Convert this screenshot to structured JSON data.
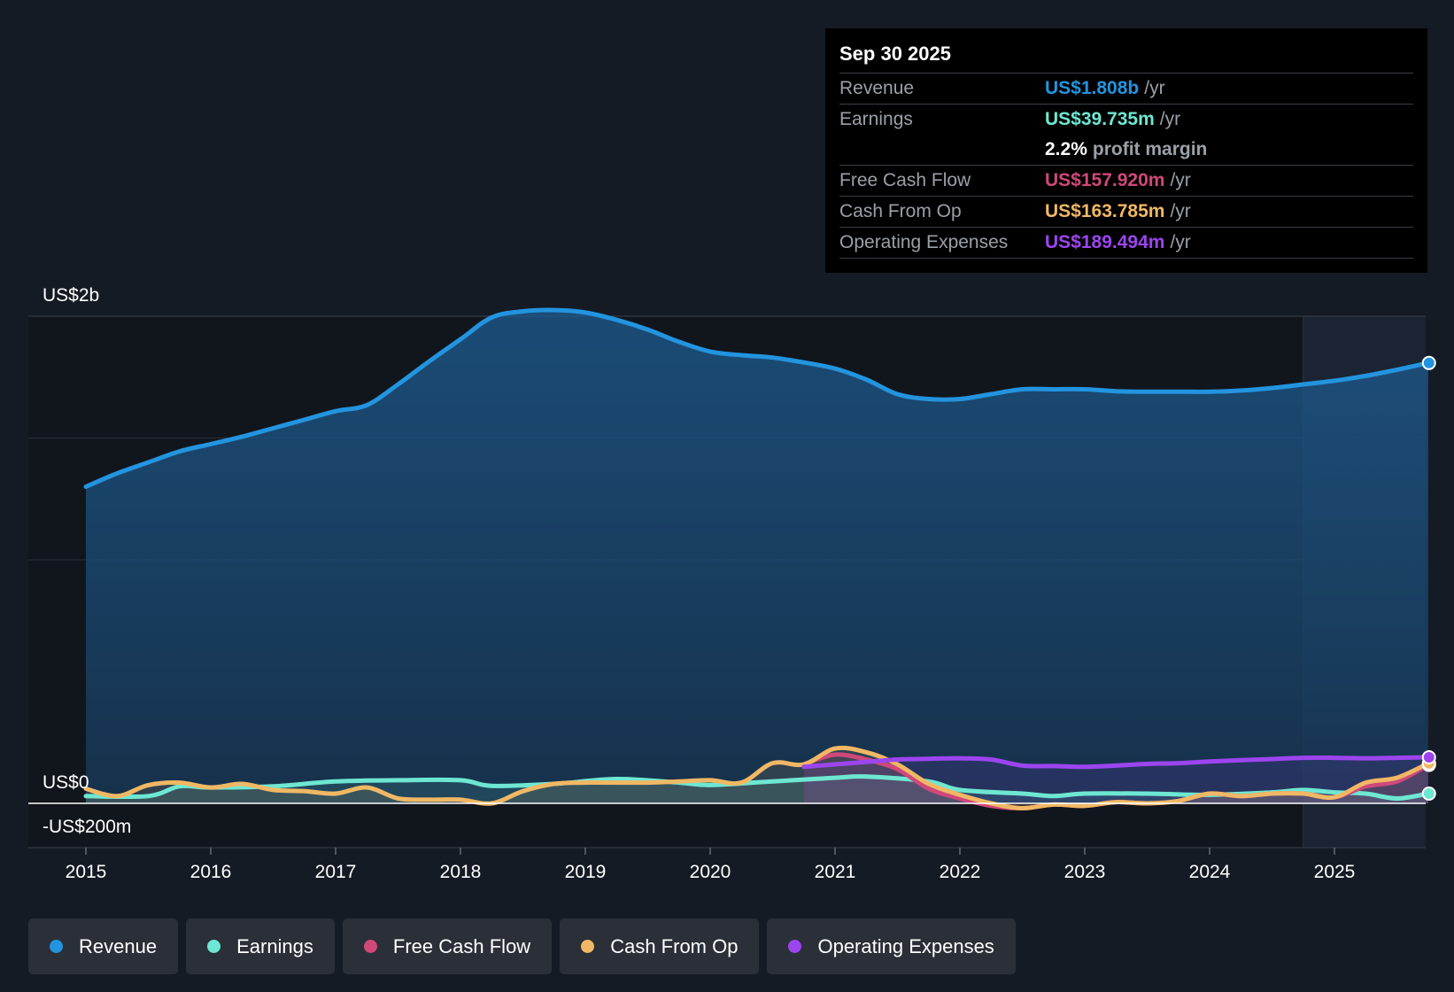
{
  "colors": {
    "background": "#151b24",
    "plot_background": "#11161d",
    "revenue": "#2394df",
    "earnings": "#6ee7d2",
    "free_cash_flow": "#d0487a",
    "cash_from_op": "#f0b865",
    "operating_expenses": "#9c45ef"
  },
  "tooltip": {
    "date": "Sep 30 2025",
    "revenue_label": "Revenue",
    "revenue_value": "US$1.808b",
    "revenue_suffix": "/yr",
    "earnings_label": "Earnings",
    "earnings_value": "US$39.735m",
    "earnings_suffix": "/yr",
    "margin_value": "2.2%",
    "margin_label": "profit margin",
    "fcf_label": "Free Cash Flow",
    "fcf_value": "US$157.920m",
    "fcf_suffix": "/yr",
    "cfo_label": "Cash From Op",
    "cfo_value": "US$163.785m",
    "cfo_suffix": "/yr",
    "opex_label": "Operating Expenses",
    "opex_value": "US$189.494m",
    "opex_suffix": "/yr"
  },
  "legend": [
    {
      "label": "Revenue",
      "color": "#2394df"
    },
    {
      "label": "Earnings",
      "color": "#6ee7d2"
    },
    {
      "label": "Free Cash Flow",
      "color": "#d0487a"
    },
    {
      "label": "Cash From Op",
      "color": "#f0b865"
    },
    {
      "label": "Operating Expenses",
      "color": "#9c45ef"
    }
  ],
  "chart_data": {
    "type": "line",
    "title": "",
    "ylim": [
      -200,
      2000
    ],
    "y_ticks": [
      {
        "value": 2000,
        "label": "US$2b"
      },
      {
        "value": 0,
        "label": "US$0"
      },
      {
        "value": -200,
        "label": "-US$200m"
      }
    ],
    "x_ticks": [
      2015,
      2016,
      2017,
      2018,
      2019,
      2020,
      2021,
      2022,
      2023,
      2024,
      2025
    ],
    "xlim": [
      2014.55,
      2025.75
    ],
    "forecast_start": 2024.75,
    "series": [
      {
        "name": "Revenue",
        "color": "#2394df",
        "fill": true,
        "x": [
          2015,
          2015.25,
          2015.5,
          2015.75,
          2016,
          2016.25,
          2016.5,
          2016.75,
          2017,
          2017.25,
          2017.5,
          2017.75,
          2018,
          2018.25,
          2018.5,
          2018.75,
          2019,
          2019.25,
          2019.5,
          2019.75,
          2020,
          2020.25,
          2020.5,
          2020.75,
          2021,
          2021.25,
          2021.5,
          2021.75,
          2022,
          2022.25,
          2022.5,
          2022.75,
          2023,
          2023.25,
          2023.5,
          2023.75,
          2024,
          2024.25,
          2024.5,
          2024.75,
          2025,
          2025.25,
          2025.5,
          2025.75
        ],
        "values": [
          1300,
          1355,
          1400,
          1445,
          1475,
          1505,
          1540,
          1575,
          1610,
          1635,
          1720,
          1815,
          1905,
          1995,
          2020,
          2025,
          2015,
          1985,
          1945,
          1895,
          1855,
          1840,
          1830,
          1810,
          1785,
          1740,
          1680,
          1660,
          1660,
          1680,
          1700,
          1700,
          1700,
          1692,
          1690,
          1690,
          1690,
          1695,
          1705,
          1720,
          1735,
          1755,
          1780,
          1808
        ]
      },
      {
        "name": "Earnings",
        "color": "#6ee7d2",
        "fill": false,
        "x": [
          2015,
          2015.5,
          2015.75,
          2016,
          2016.5,
          2017,
          2017.5,
          2018,
          2018.25,
          2018.75,
          2019.25,
          2019.75,
          2020,
          2020.5,
          2021,
          2021.25,
          2021.75,
          2022,
          2022.5,
          2022.75,
          2023,
          2023.5,
          2024,
          2024.5,
          2024.75,
          2025,
          2025.25,
          2025.5,
          2025.75
        ],
        "values": [
          30,
          30,
          70,
          65,
          70,
          90,
          95,
          95,
          72,
          80,
          100,
          85,
          75,
          90,
          105,
          110,
          90,
          55,
          40,
          30,
          40,
          40,
          35,
          45,
          55,
          45,
          40,
          20,
          40
        ]
      },
      {
        "name": "Free Cash Flow",
        "color": "#d0487a",
        "fill": false,
        "x": [
          2020.75,
          2021,
          2021.25,
          2021.5,
          2021.75,
          2022,
          2022.25,
          2022.5,
          2022.75,
          2023,
          2023.25,
          2023.5,
          2023.75,
          2024,
          2024.25,
          2024.5,
          2024.75,
          2025,
          2025.25,
          2025.5,
          2025.75
        ],
        "values": [
          160,
          200,
          180,
          140,
          60,
          20,
          -10,
          -20,
          -5,
          -10,
          5,
          0,
          10,
          40,
          30,
          40,
          40,
          25,
          70,
          90,
          158
        ]
      },
      {
        "name": "Cash From Op",
        "color": "#f0b865",
        "fill": false,
        "x": [
          2015,
          2015.25,
          2015.5,
          2015.75,
          2016,
          2016.25,
          2016.5,
          2016.75,
          2017,
          2017.25,
          2017.5,
          2017.75,
          2018,
          2018.25,
          2018.5,
          2018.75,
          2019,
          2019.5,
          2019.75,
          2020,
          2020.25,
          2020.5,
          2020.75,
          2021,
          2021.25,
          2021.5,
          2021.75,
          2022,
          2022.25,
          2022.5,
          2022.75,
          2023,
          2023.25,
          2023.5,
          2023.75,
          2024,
          2024.25,
          2024.5,
          2024.75,
          2025,
          2025.25,
          2025.5,
          2025.75
        ],
        "values": [
          60,
          30,
          75,
          85,
          65,
          80,
          55,
          50,
          40,
          65,
          20,
          15,
          15,
          0,
          50,
          80,
          85,
          85,
          90,
          95,
          85,
          165,
          160,
          225,
          210,
          160,
          80,
          35,
          0,
          -20,
          -5,
          -10,
          5,
          0,
          10,
          40,
          30,
          40,
          40,
          25,
          85,
          105,
          164
        ]
      },
      {
        "name": "Operating Expenses",
        "color": "#9c45ef",
        "fill": false,
        "x": [
          2020.75,
          2021,
          2021.25,
          2021.5,
          2021.75,
          2022,
          2022.25,
          2022.5,
          2022.75,
          2023,
          2023.25,
          2023.5,
          2023.75,
          2024,
          2024.25,
          2024.5,
          2024.75,
          2025,
          2025.25,
          2025.5,
          2025.75
        ],
        "values": [
          150,
          160,
          170,
          180,
          183,
          185,
          180,
          155,
          153,
          150,
          155,
          162,
          165,
          172,
          177,
          182,
          187,
          187,
          185,
          187,
          189
        ]
      }
    ]
  }
}
